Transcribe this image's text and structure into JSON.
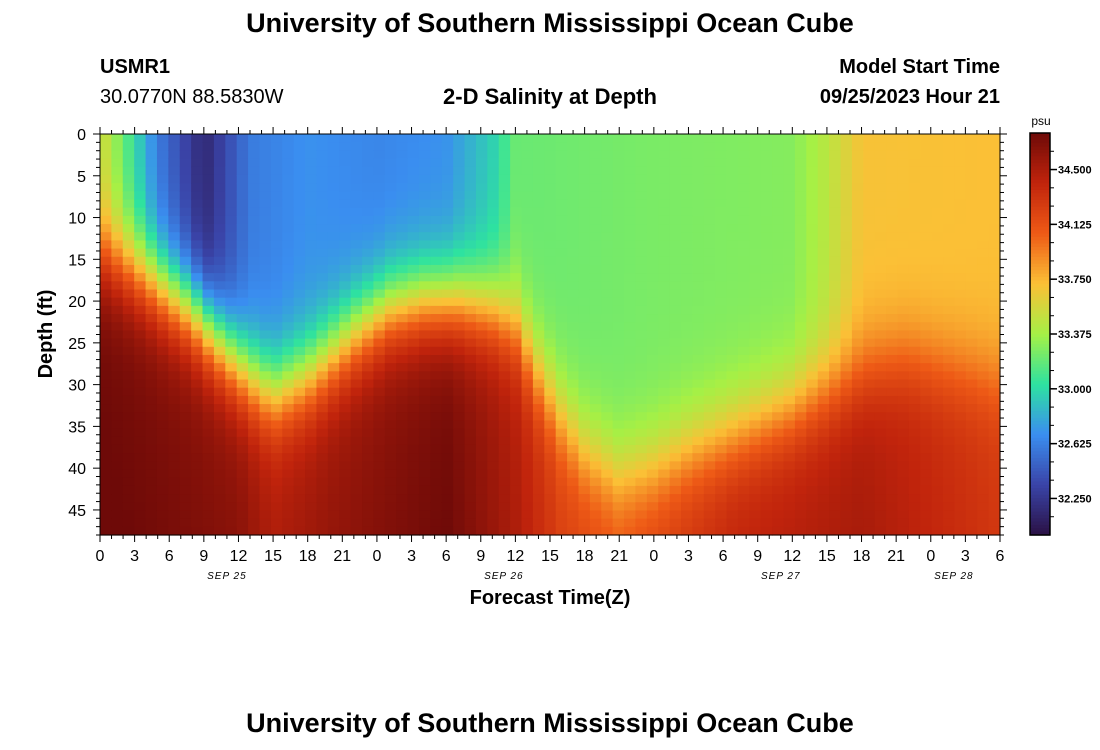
{
  "header": {
    "title": "University of Southern Mississippi Ocean Cube",
    "station": "USMR1",
    "coords": "30.0770N  88.5830W",
    "plot_title": "2-D Salinity at Depth",
    "model_start_label": "Model Start Time",
    "model_start_value": "09/25/2023 Hour 21"
  },
  "footer": {
    "title": "University of Southern Mississippi Ocean Cube"
  },
  "colors": {
    "ramp": [
      "#2a1145",
      "#3a44a8",
      "#3a8ef0",
      "#2ee2a0",
      "#a6f045",
      "#fbc036",
      "#ee5a16",
      "#c1240c",
      "#6e0a08"
    ]
  },
  "chart_data": {
    "type": "heatmap",
    "title": "2-D Salinity at Depth",
    "xlabel": "Forecast Time(Z)",
    "ylabel": "Depth (ft)",
    "x_hours_from_start": [
      0,
      78
    ],
    "x_tick_labels": [
      "0",
      "3",
      "6",
      "9",
      "12",
      "15",
      "18",
      "21",
      "0",
      "3",
      "6",
      "9",
      "12",
      "15",
      "18",
      "21",
      "0",
      "3",
      "6",
      "9",
      "12",
      "15",
      "18",
      "21",
      "0",
      "3",
      "6"
    ],
    "x_tick_step_hours": 3,
    "date_labels": [
      {
        "label": "SEP 25",
        "hour": 11
      },
      {
        "label": "SEP 26",
        "hour": 35
      },
      {
        "label": "SEP 27",
        "hour": 59
      },
      {
        "label": "SEP 28",
        "hour": 74
      }
    ],
    "ylim": [
      0,
      48
    ],
    "y_ticks": [
      0,
      5,
      10,
      15,
      20,
      25,
      30,
      35,
      40,
      45
    ],
    "colorbar": {
      "unit": "psu",
      "range": [
        32.0,
        34.75
      ],
      "ticks": [
        "34.500",
        "34.125",
        "33.750",
        "33.375",
        "33.000",
        "32.625",
        "32.250"
      ]
    },
    "surface_salinity_psu": [
      [
        0,
        33.55
      ],
      [
        2,
        33.2
      ],
      [
        5,
        32.6
      ],
      [
        9,
        32.15
      ],
      [
        13,
        32.6
      ],
      [
        18,
        32.7
      ],
      [
        24,
        32.65
      ],
      [
        30,
        32.7
      ],
      [
        34,
        32.95
      ],
      [
        36,
        33.2
      ],
      [
        48,
        33.25
      ],
      [
        60,
        33.28
      ],
      [
        63,
        33.45
      ],
      [
        66,
        33.7
      ],
      [
        78,
        33.72
      ]
    ],
    "halocline_depth_ft": [
      [
        0,
        14
      ],
      [
        4,
        17
      ],
      [
        8,
        21
      ],
      [
        11,
        26
      ],
      [
        13,
        29
      ],
      [
        15,
        31
      ],
      [
        18,
        29
      ],
      [
        22,
        24
      ],
      [
        25,
        21
      ],
      [
        28,
        20
      ],
      [
        31,
        20
      ],
      [
        34,
        21
      ],
      [
        36,
        23
      ],
      [
        38,
        29
      ],
      [
        40,
        34
      ],
      [
        42,
        38
      ],
      [
        45,
        41
      ],
      [
        48,
        40
      ],
      [
        51,
        38
      ],
      [
        55,
        36
      ],
      [
        60,
        33
      ],
      [
        64,
        30
      ],
      [
        67,
        28
      ],
      [
        70,
        27
      ],
      [
        73,
        28
      ],
      [
        76,
        29
      ],
      [
        78,
        30
      ]
    ],
    "bottom_salinity_psu": [
      [
        0,
        34.72
      ],
      [
        12,
        34.6
      ],
      [
        15,
        34.45
      ],
      [
        20,
        34.55
      ],
      [
        30,
        34.7
      ],
      [
        36,
        34.45
      ],
      [
        40,
        34.2
      ],
      [
        45,
        34.1
      ],
      [
        55,
        34.38
      ],
      [
        66,
        34.48
      ],
      [
        78,
        34.25
      ]
    ]
  }
}
